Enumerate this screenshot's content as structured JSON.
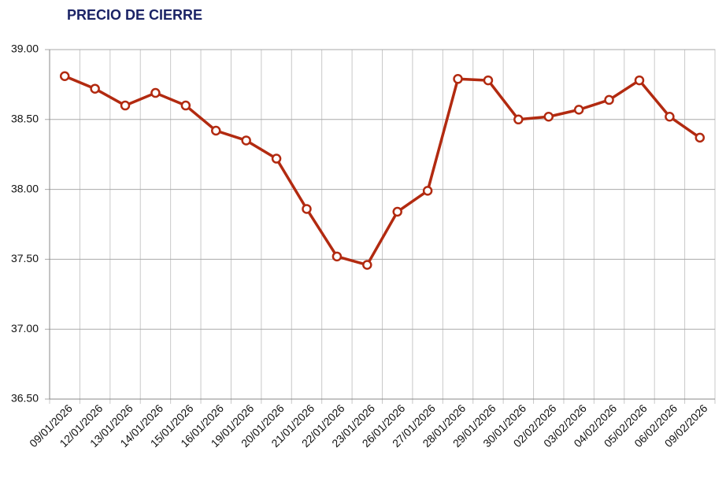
{
  "chart_data": {
    "type": "line",
    "title": "PRECIO DE CIERRE",
    "categories": [
      "09/01/2026",
      "12/01/2026",
      "13/01/2026",
      "14/01/2026",
      "15/01/2026",
      "16/01/2026",
      "19/01/2026",
      "20/01/2026",
      "21/01/2026",
      "22/01/2026",
      "23/01/2026",
      "26/01/2026",
      "27/01/2026",
      "28/01/2026",
      "29/01/2026",
      "30/01/2026",
      "02/02/2026",
      "03/02/2026",
      "04/02/2026",
      "05/02/2026",
      "06/02/2026",
      "09/02/2026"
    ],
    "values": [
      38.81,
      38.72,
      38.6,
      38.69,
      38.6,
      38.42,
      38.35,
      38.22,
      37.86,
      37.52,
      37.46,
      37.84,
      37.99,
      38.79,
      38.78,
      38.5,
      38.52,
      38.57,
      38.64,
      38.78,
      38.52,
      38.37
    ],
    "color": "#b22a10",
    "ylim": [
      36.5,
      39
    ],
    "yticks": [
      {
        "value": 36.5,
        "label": "36.50"
      },
      {
        "value": 37,
        "label": "37.00"
      },
      {
        "value": 37.5,
        "label": "37.50"
      },
      {
        "value": 38,
        "label": "38.00"
      },
      {
        "value": 38.5,
        "label": "38.50"
      },
      {
        "value": 39,
        "label": "39.00"
      }
    ],
    "grid": true
  }
}
